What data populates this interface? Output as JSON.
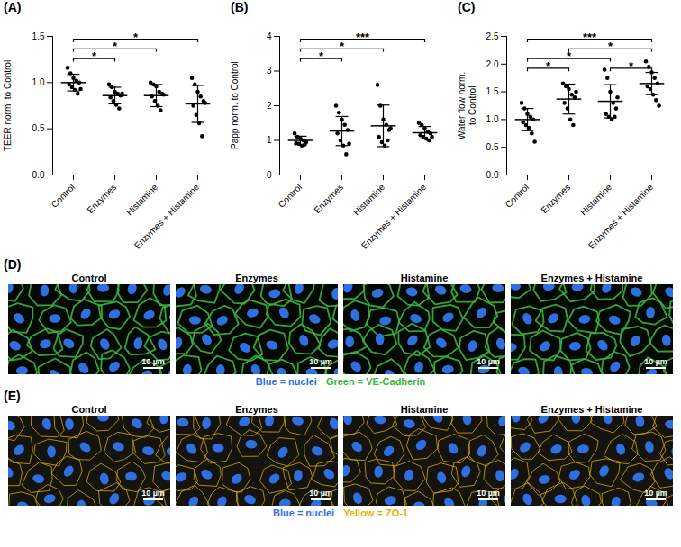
{
  "chart_data": [
    {
      "panel": "(A)",
      "type": "scatter",
      "ylabel": "TEER norm. to Control",
      "categories": [
        "Control",
        "Enzymes",
        "Histamine",
        "Enzymes + Histamine"
      ],
      "points": [
        [
          1.16,
          1.1,
          1.05,
          1.02,
          1.0,
          0.98,
          0.95,
          0.92,
          0.88,
          0.93
        ],
        [
          0.98,
          0.95,
          0.9,
          0.88,
          0.86,
          0.84,
          0.8,
          0.76,
          0.72,
          0.88
        ],
        [
          1.0,
          0.98,
          0.96,
          0.9,
          0.88,
          0.85,
          0.8,
          0.75,
          0.7,
          0.87
        ],
        [
          1.05,
          0.98,
          0.9,
          0.85,
          0.8,
          0.75,
          0.65,
          0.56,
          0.42,
          0.78
        ]
      ],
      "mean": [
        1.0,
        0.86,
        0.86,
        0.77
      ],
      "sd": [
        0.09,
        0.09,
        0.12,
        0.2
      ],
      "color": "#000000",
      "ylim": [
        0,
        1.5
      ],
      "yticks": [
        {
          "value": 0,
          "label": "0.0"
        },
        {
          "value": 0.5,
          "label": "0.5"
        },
        {
          "value": 1,
          "label": "1.0"
        },
        {
          "value": 1.5,
          "label": "1.5"
        }
      ],
      "significance": [
        {
          "from": "Control",
          "to": "Enzymes",
          "label": "*"
        },
        {
          "from": "Control",
          "to": "Histamine",
          "label": "*"
        },
        {
          "from": "Control",
          "to": "Enzymes + Histamine",
          "label": "*"
        }
      ]
    },
    {
      "panel": "(B)",
      "type": "scatter",
      "ylabel": "Papp norm. to Control",
      "categories": [
        "Control",
        "Enzymes",
        "Histamine",
        "Enzymes + Histamine"
      ],
      "points": [
        [
          1.2,
          1.1,
          1.05,
          1.0,
          0.95,
          0.92,
          0.9,
          0.85,
          0.88
        ],
        [
          2.0,
          1.8,
          1.6,
          1.45,
          1.3,
          1.2,
          1.0,
          0.85,
          0.6,
          0.9
        ],
        [
          2.6,
          2.0,
          1.6,
          1.45,
          1.3,
          1.1,
          0.95,
          0.85,
          1.0,
          1.35
        ],
        [
          1.5,
          1.45,
          1.35,
          1.25,
          1.2,
          1.15,
          1.1,
          1.05,
          1.0,
          1.1
        ]
      ],
      "mean": [
        1.0,
        1.27,
        1.42,
        1.22
      ],
      "sd": [
        0.12,
        0.42,
        0.6,
        0.18
      ],
      "color": "#000000",
      "ylim": [
        0,
        4
      ],
      "yticks": [
        0,
        1,
        2,
        3,
        4
      ],
      "significance": [
        {
          "from": "Control",
          "to": "Enzymes",
          "label": "*"
        },
        {
          "from": "Control",
          "to": "Histamine",
          "label": "*"
        },
        {
          "from": "Control",
          "to": "Enzymes + Histamine",
          "label": "***"
        }
      ]
    },
    {
      "panel": "(C)",
      "type": "scatter",
      "ylabel": "Water flow norm. to Control",
      "categories": [
        "Control",
        "Enzymes",
        "Histamine",
        "Enzymes + Histamine"
      ],
      "points": [
        [
          1.3,
          1.2,
          1.1,
          1.05,
          1.0,
          0.95,
          0.9,
          0.85,
          0.75,
          0.6
        ],
        [
          1.65,
          1.6,
          1.55,
          1.45,
          1.4,
          1.3,
          1.2,
          1.0,
          0.9,
          1.5
        ],
        [
          1.9,
          1.75,
          1.5,
          1.3,
          1.2,
          1.1,
          1.05,
          1.0,
          1.05,
          1.4
        ],
        [
          2.05,
          1.95,
          1.85,
          1.75,
          1.65,
          1.6,
          1.55,
          1.45,
          1.35,
          1.25
        ]
      ],
      "mean": [
        1.0,
        1.37,
        1.33,
        1.65
      ],
      "sd": [
        0.2,
        0.27,
        0.3,
        0.2
      ],
      "color": "#000000",
      "ylim": [
        0,
        2.5
      ],
      "yticks": [
        {
          "value": 0,
          "label": "0.0"
        },
        {
          "value": 0.5,
          "label": "0.5"
        },
        {
          "value": 1,
          "label": "1.0"
        },
        {
          "value": 1.5,
          "label": "1.5"
        },
        {
          "value": 2,
          "label": "2.0"
        },
        {
          "value": 2.5,
          "label": "2.5"
        }
      ],
      "significance": [
        {
          "from": "Control",
          "to": "Enzymes",
          "label": "*"
        },
        {
          "from": "Histamine",
          "to": "Enzymes + Histamine",
          "label": "*"
        },
        {
          "from": "Control",
          "to": "Histamine",
          "label": "*"
        },
        {
          "from": "Enzymes",
          "to": "Enzymes + Histamine",
          "label": "*"
        },
        {
          "from": "Control",
          "to": "Enzymes + Histamine",
          "label": "***"
        }
      ]
    }
  ],
  "images": [
    {
      "panel": "(D)",
      "titles": [
        "Control",
        "Enzymes",
        "Histamine",
        "Enzymes + Histamine"
      ],
      "scale_bar": "10 µm",
      "legend": [
        {
          "text": "Blue = nuclei",
          "color": "#2f6fe0"
        },
        {
          "text": "Green = VE-Cadherin",
          "color": "#3cb43c"
        }
      ]
    },
    {
      "panel": "(E)",
      "titles": [
        "Control",
        "Enzymes",
        "Histamine",
        "Enzymes + Histamine"
      ],
      "scale_bar": "10 µm",
      "legend": [
        {
          "text": "Blue = nuclei",
          "color": "#2f6fe0"
        },
        {
          "text": "Yellow = ZO-1",
          "color": "#e0b400"
        }
      ]
    }
  ]
}
